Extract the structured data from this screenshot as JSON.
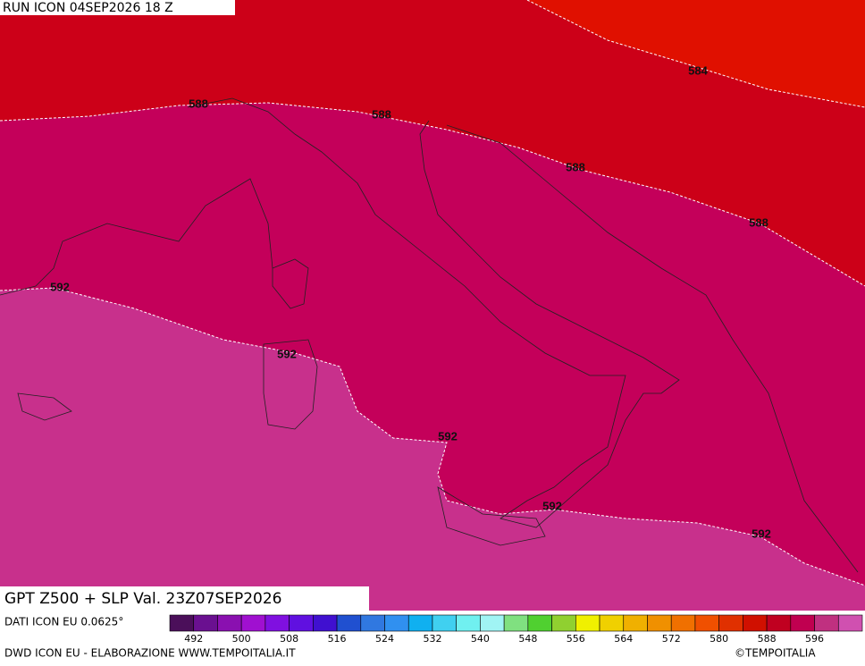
{
  "header": {
    "run": "RUN ICON 04SEP2026 18 Z"
  },
  "map": {
    "title": "GPT Z500 + SLP Val. 23Z07SEP2026",
    "contour_labels": [
      584,
      588,
      588,
      588,
      588,
      592,
      592,
      592,
      592,
      592
    ]
  },
  "footer": {
    "source": "DATI ICON EU 0.0625°",
    "credit": "DWD ICON EU - ELABORAZIONE WWW.TEMPOITALIA.IT",
    "copyright": "©TEMPOITALIA"
  },
  "colorbar": {
    "lim": [
      488,
      604
    ],
    "ticks": [
      492,
      500,
      508,
      516,
      524,
      532,
      540,
      548,
      556,
      564,
      572,
      580,
      588,
      596
    ],
    "colors": [
      "#4b0f5a",
      "#6a1090",
      "#8a10b0",
      "#a010d0",
      "#8010e0",
      "#6010e0",
      "#4010d0",
      "#2050d0",
      "#3078e0",
      "#3090f0",
      "#10b0f0",
      "#40d0f0",
      "#70f0f0",
      "#a0f4f4",
      "#80e080",
      "#50d030",
      "#90d030",
      "#f0f000",
      "#f0d000",
      "#f0b000",
      "#f09000",
      "#f07000",
      "#f05000",
      "#e03000",
      "#d01000",
      "#c00020",
      "#c00050",
      "#c03080",
      "#d050b0"
    ]
  }
}
